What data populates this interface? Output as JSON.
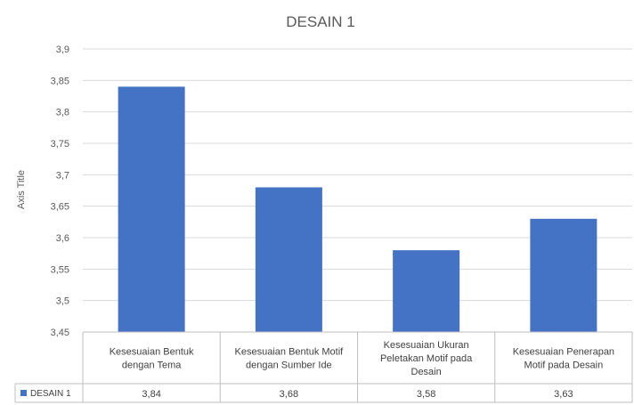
{
  "chart_data": {
    "type": "bar",
    "title": "DESAIN 1",
    "xlabel": "",
    "ylabel": "Axis Title",
    "ylim": [
      3.45,
      3.9
    ],
    "yticks": [
      "3,45",
      "3,5",
      "3,55",
      "3,6",
      "3,65",
      "3,7",
      "3,75",
      "3,8",
      "3,85",
      "3,9"
    ],
    "grid": true,
    "legend_placement": "data-table-left",
    "colors": {
      "bar": "#4472c4",
      "grid": "#d9d9d9",
      "border": "#bfbfbf"
    },
    "categories": [
      [
        "Kesesuaian Bentuk",
        "dengan Tema"
      ],
      [
        "Kesesuaian Bentuk Motif",
        "dengan Sumber Ide"
      ],
      [
        "Kesesuaian Ukuran",
        "Peletakan Motif pada",
        "Desain"
      ],
      [
        "Kesesuaian Penerapan",
        "Motif pada Desain"
      ]
    ],
    "series": [
      {
        "name": "DESAIN 1",
        "values": [
          3.84,
          3.68,
          3.58,
          3.63
        ],
        "labels": [
          "3,84",
          "3,68",
          "3,58",
          "3,63"
        ]
      }
    ]
  }
}
